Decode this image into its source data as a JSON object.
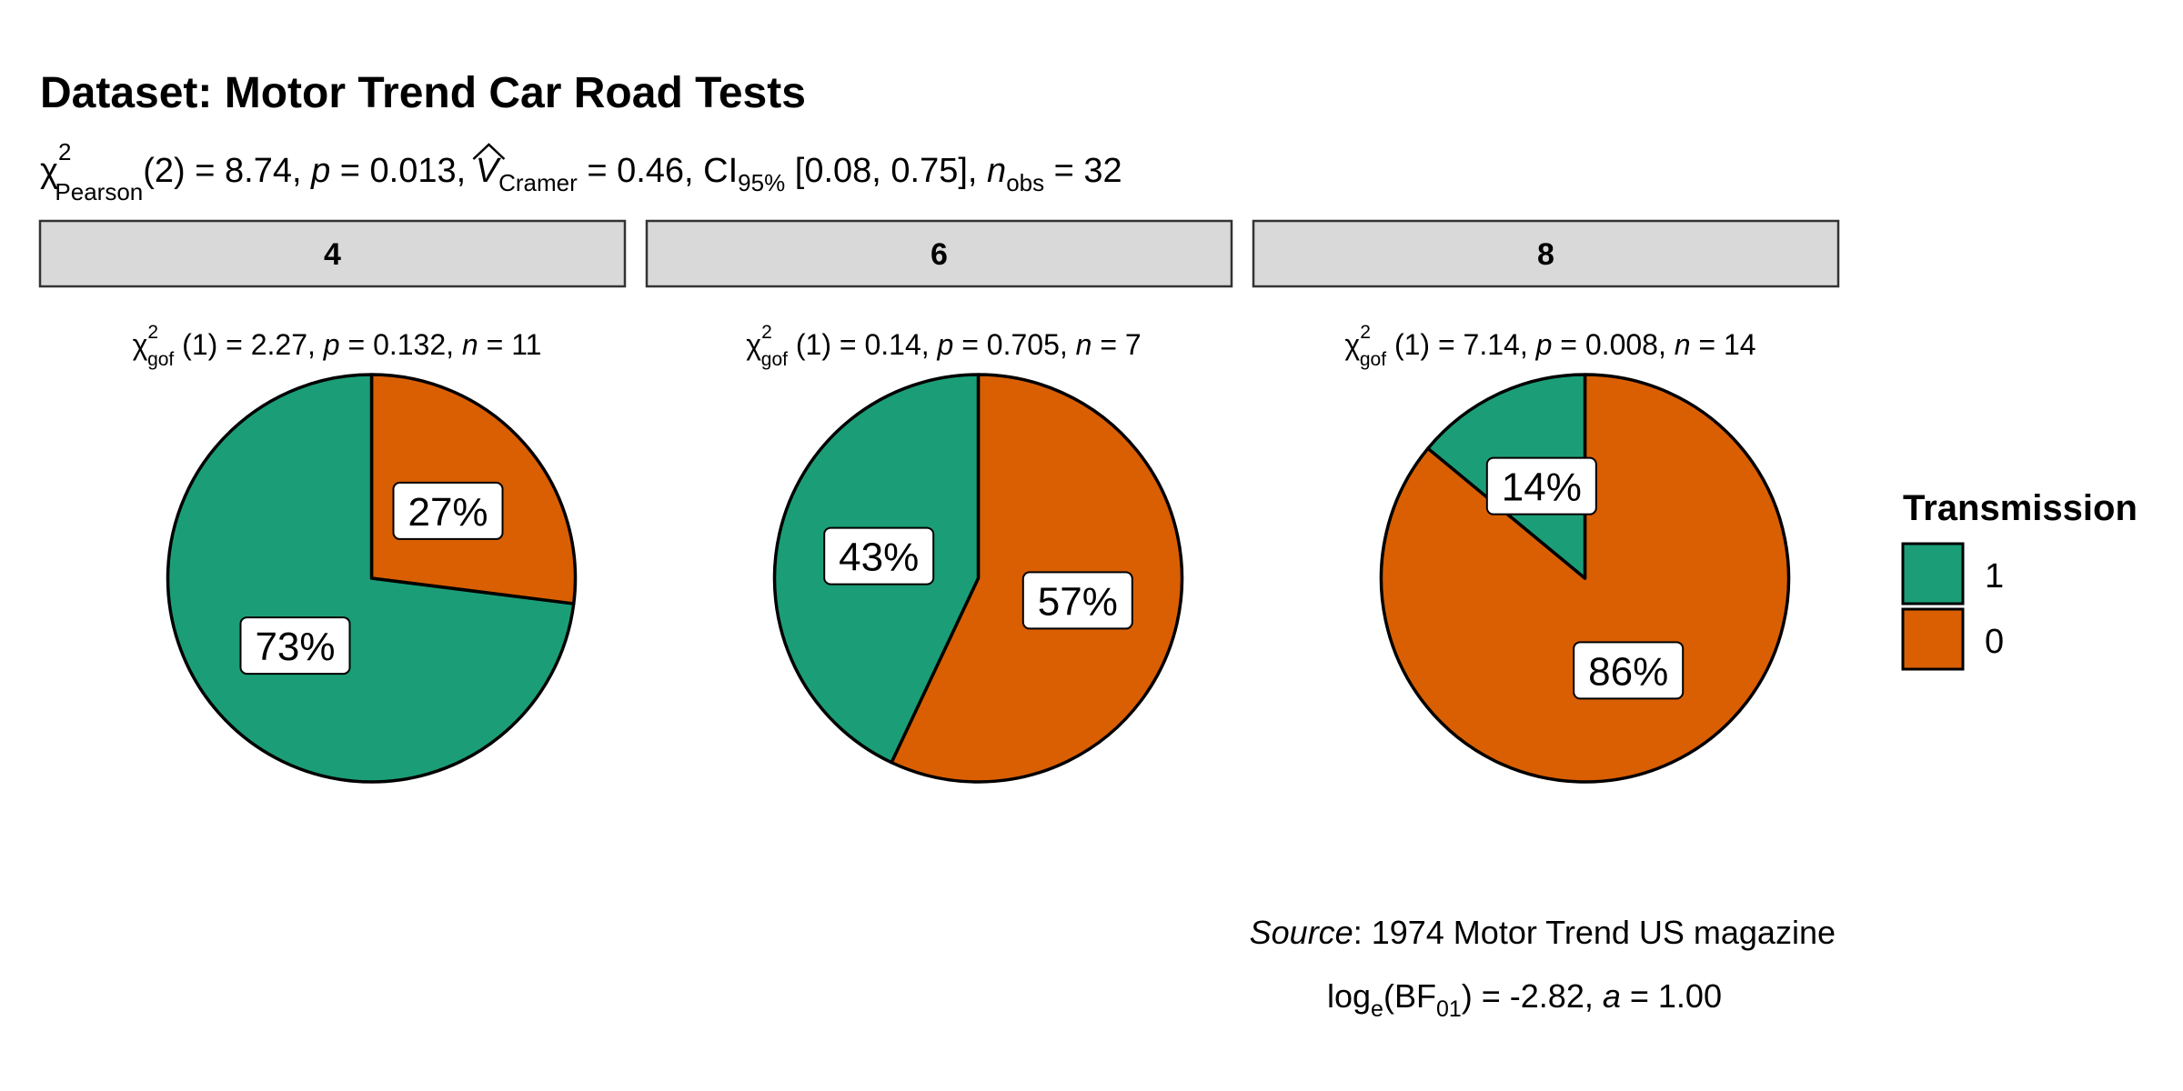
{
  "chart_data": {
    "type": "pie",
    "title": "Dataset: Motor Trend Car Road Tests",
    "subtitle": {
      "chi_symbol": "χ",
      "chi_sup": "2",
      "chi_sub": "Pearson",
      "df": "(2) = 8.74, ",
      "p_symbol": "p",
      "p_value": " = 0.013, ",
      "v_symbol": "V",
      "v_sub": "Cramer",
      "v_value": " = 0.46, CI",
      "ci_sub": "95%",
      "ci_value": " [0.08, 0.75], ",
      "n_symbol": "n",
      "n_sub": "obs",
      "n_value": " = 32"
    },
    "legend": {
      "title": "Transmission",
      "items": [
        {
          "label": "1",
          "color": "#1b9e77"
        },
        {
          "label": "0",
          "color": "#d95f02"
        }
      ]
    },
    "facets": [
      {
        "strip": "4",
        "chi_symbol": "χ",
        "chi_sup": "2",
        "chi_sub": "gof",
        "stat_text": "(1) = 2.27,",
        "p_symbol": "p",
        "p_text": " = 0.132,",
        "n_symbol": "n",
        "n_text": " = 11",
        "slices": [
          {
            "category": "1",
            "percent": 73,
            "label": "73%"
          },
          {
            "category": "0",
            "percent": 27,
            "label": "27%"
          }
        ]
      },
      {
        "strip": "6",
        "chi_symbol": "χ",
        "chi_sup": "2",
        "chi_sub": "gof",
        "stat_text": "(1) = 0.14,",
        "p_symbol": "p",
        "p_text": " = 0.705,",
        "n_symbol": "n",
        "n_text": " = 7",
        "slices": [
          {
            "category": "1",
            "percent": 43,
            "label": "43%"
          },
          {
            "category": "0",
            "percent": 57,
            "label": "57%"
          }
        ]
      },
      {
        "strip": "8",
        "chi_symbol": "χ",
        "chi_sup": "2",
        "chi_sub": "gof",
        "stat_text": "(1) = 7.14,",
        "p_symbol": "p",
        "p_text": " = 0.008,",
        "n_symbol": "n",
        "n_text": " = 14",
        "slices": [
          {
            "category": "1",
            "percent": 14,
            "label": "14%"
          },
          {
            "category": "0",
            "percent": 86,
            "label": "86%"
          }
        ]
      }
    ],
    "caption": {
      "source_label": "Source",
      "source_text": ": 1974 Motor Trend US magazine",
      "bf_prefix": "log",
      "bf_sub_e": "e",
      "bf_mid": "(BF",
      "bf_sub": "01",
      "bf_value": ") = -2.82, ",
      "a_symbol": "a",
      "a_value": " = 1.00"
    }
  }
}
